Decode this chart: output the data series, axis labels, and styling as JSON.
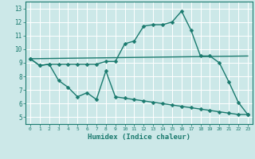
{
  "xlabel": "Humidex (Indice chaleur)",
  "bg_color": "#cce8e8",
  "line_color": "#1a7a6e",
  "grid_color": "#b8d8d8",
  "xlim": [
    -0.5,
    23.5
  ],
  "ylim": [
    4.5,
    13.5
  ],
  "xticks": [
    0,
    1,
    2,
    3,
    4,
    5,
    6,
    7,
    8,
    9,
    10,
    11,
    12,
    13,
    14,
    15,
    16,
    17,
    18,
    19,
    20,
    21,
    22,
    23
  ],
  "yticks": [
    5,
    6,
    7,
    8,
    9,
    10,
    11,
    12,
    13
  ],
  "line1_x": [
    0,
    1,
    2,
    3,
    4,
    5,
    6,
    7,
    8,
    9,
    10,
    11,
    12,
    13,
    14,
    15,
    16,
    17,
    18,
    19,
    20,
    21,
    22,
    23
  ],
  "line1_y": [
    9.3,
    8.8,
    8.9,
    8.9,
    8.9,
    8.9,
    8.9,
    8.9,
    9.1,
    9.1,
    10.4,
    10.6,
    11.7,
    11.8,
    11.8,
    12.0,
    12.8,
    11.4,
    9.5,
    9.5,
    9.0,
    7.6,
    6.1,
    5.2
  ],
  "line2_x": [
    0,
    23
  ],
  "line2_y": [
    9.3,
    9.5
  ],
  "line3_x": [
    0,
    1,
    2,
    3,
    4,
    5,
    6,
    7,
    8,
    9,
    10,
    11,
    12,
    13,
    14,
    15,
    16,
    17,
    18,
    19,
    20,
    21,
    22,
    23
  ],
  "line3_y": [
    9.3,
    8.8,
    8.9,
    7.7,
    7.2,
    6.5,
    6.8,
    6.3,
    8.4,
    6.5,
    6.4,
    6.3,
    6.2,
    6.1,
    6.0,
    5.9,
    5.8,
    5.7,
    5.6,
    5.5,
    5.4,
    5.3,
    5.2,
    5.2
  ],
  "marker_size": 2.5,
  "line_width": 1.0
}
